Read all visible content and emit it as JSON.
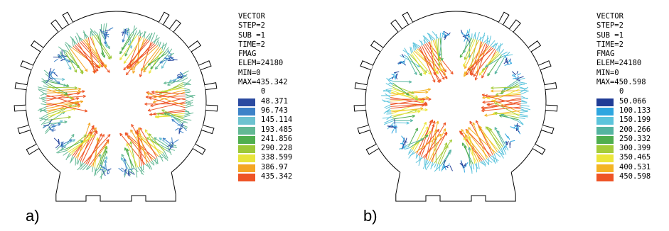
{
  "panels": [
    {
      "id": "a",
      "caption": "a)",
      "legend": {
        "lines": [
          "VECTOR",
          "STEP=2",
          "SUB =1",
          "TIME=2",
          "FMAG",
          "ELEM=24180",
          "MIN=0",
          "MAX=435.342"
        ],
        "zero": "0",
        "levels": [
          "48.371",
          "96.743",
          "145.114",
          "193.485",
          "241.856",
          "290.228",
          "338.599",
          "386.97",
          "435.342"
        ]
      },
      "palette": [
        "#2b4aa0",
        "#3d82c8",
        "#6dc2d0",
        "#62b894",
        "#4fae4f",
        "#9cc838",
        "#e8e43a",
        "#f4a624",
        "#ee5426"
      ],
      "dominant_color": "#62b894"
    },
    {
      "id": "b",
      "caption": "b)",
      "legend": {
        "lines": [
          "VECTOR",
          "STEP=2",
          "SUB =1",
          "TIME=2",
          "FMAG",
          "ELEM=24180",
          "MIN=0",
          "MAX=450.598"
        ],
        "zero": "0",
        "levels": [
          "50.066",
          "100.133",
          "150.199",
          "200.266",
          "250.332",
          "300.399",
          "350.465",
          "400.531",
          "450.598"
        ]
      },
      "palette": [
        "#203c96",
        "#2ea6e0",
        "#5cc4dc",
        "#54b4a0",
        "#4fae4f",
        "#a4cc3a",
        "#ece63a",
        "#f4b424",
        "#ee5426"
      ],
      "dominant_color": "#5cc4dc"
    }
  ]
}
